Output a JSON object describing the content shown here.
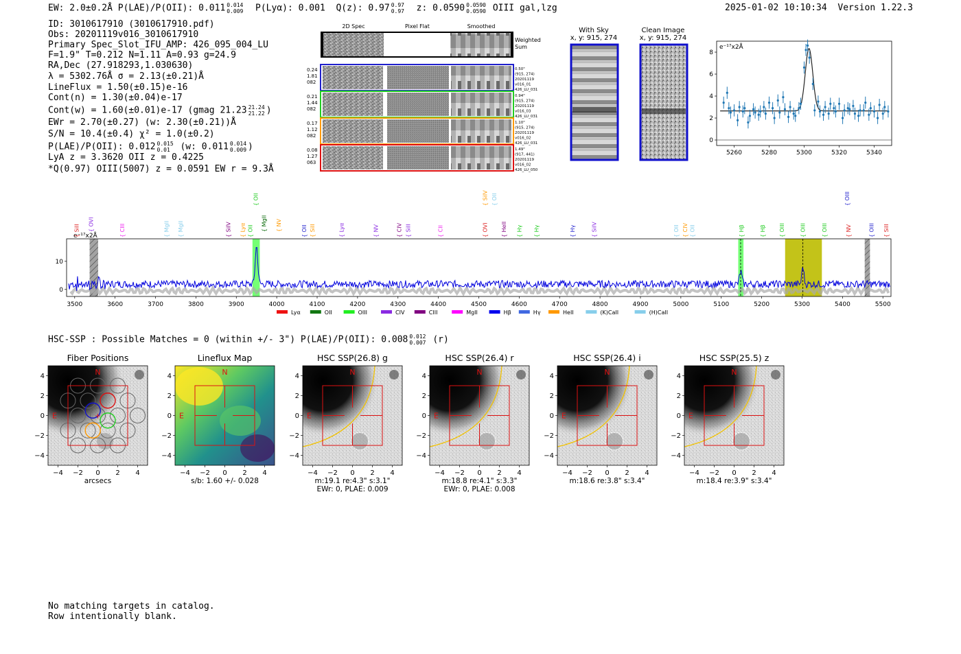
{
  "header": {
    "left": "EW: 2.0±0.2Å  P(LAE)/P(OII): 0.011",
    "lae_sup": "0.014",
    "lae_sub": "0.009",
    "plya": "P(Lyα): 0.001",
    "qz": "Q(z): 0.97",
    "qz_sup": "0.97",
    "qz_sub": "0.97",
    "z": "z: 0.0590",
    "z_sup": "0.0590",
    "z_sub": "0.0590",
    "tail": "OIII  gal,lzg",
    "timestamp": "2025-01-02 10:10:34",
    "version": "Version 1.22.3"
  },
  "info": {
    "id": "ID: 3010617910 (3010617910.pdf)",
    "obs": "Obs: 20201119v016_3010617910",
    "primary": "Primary Spec_Slot_IFU_AMP: 426_095_004_LU",
    "fwhm": "F=1.9\"  T=0.212  N=1.11  A=0.93  g=24.9",
    "radec": "RA,Dec (27.918293,1.030630)",
    "lambda": "λ = 5302.76Å  σ = 2.13(±0.21)Å",
    "lineflux": "LineFlux = 1.50(±0.15)e-16",
    "contn": "Cont(n) = 1.30(±0.04)e-17",
    "contw": "Cont(w) = 1.60(±0.01)e-17 (gmag 21.23",
    "contw_sup": "21.24",
    "contw_sub": "21.22",
    "contw_close": ")",
    "ewr": "EWr = 2.70(±0.27) (w: 2.30(±0.21))Å",
    "sn": "S/N = 10.4(±0.4)  χ² = 1.0(±0.2)",
    "plae": "P(LAE)/P(OII): 0.012",
    "plae_sup": "0.015",
    "plae_sub": "0.01",
    "plae_w": "(w: 0.011",
    "plae_w_sup": "0.014",
    "plae_w_sub": "0.009",
    "plae_w_close": ")",
    "lya": "LyA z = 3.3620  OII z = 0.4225",
    "q": "*Q(0.97) OIII(5007) z = 0.0591  EW r = 9.3Å"
  },
  "cutouts": {
    "col_2d": "2D Spec",
    "col_flat": "Pixel Flat",
    "col_smooth": "Smoothed",
    "weighted": "Weighted",
    "sum": "Sum",
    "rows": [
      {
        "left": [
          "0.24",
          "1.81",
          "082"
        ],
        "right": [
          "0.50\"",
          "(915, 274)",
          "20201119",
          "v016_01",
          "426_LU_031"
        ],
        "color": "#1f1fcc"
      },
      {
        "left": [
          "0.21",
          "1.44",
          "082"
        ],
        "right": [
          "0.94\"",
          "(915, 274)",
          "20201119",
          "v016_03",
          "426_LU_031"
        ],
        "color": "#22cc22"
      },
      {
        "left": [
          "0.17",
          "1.12",
          "082"
        ],
        "right": [
          "1.10\"",
          "(915, 274)",
          "20201119",
          "v016_02",
          "426_LU_031"
        ],
        "color": "#ff9900"
      },
      {
        "left": [
          "0.08",
          "1.27",
          "063"
        ],
        "right": [
          "1.49\"",
          "(917, 441)",
          "20201119",
          "v016_02",
          "426_LU_050"
        ],
        "color": "#dd1111"
      }
    ]
  },
  "sky": {
    "with_sky": "With Sky",
    "with_sky_xy": "x, y: 915, 274",
    "clean": "Clean Image",
    "clean_xy": "x, y: 915, 274"
  },
  "fit_chart": {
    "type": "scatter",
    "ylabel": "e⁻¹⁷x2Å",
    "x_ticks": [
      "5260",
      "5280",
      "5300",
      "5320",
      "5340"
    ],
    "y_ticks": [
      "0",
      "2",
      "4",
      "6",
      "8"
    ],
    "xlim": [
      5250,
      5350
    ],
    "ylim": [
      -0.5,
      9.0
    ],
    "points_x": [
      5254,
      5256,
      5257,
      5258,
      5260,
      5262,
      5263,
      5265,
      5266,
      5268,
      5269,
      5271,
      5272,
      5274,
      5275,
      5277,
      5278,
      5280,
      5282,
      5283,
      5285,
      5286,
      5288,
      5289,
      5291,
      5292,
      5294,
      5295,
      5297,
      5298,
      5300,
      5301,
      5302,
      5303,
      5305,
      5306,
      5308,
      5309,
      5311,
      5312,
      5314,
      5315,
      5317,
      5318,
      5320,
      5322,
      5323,
      5325,
      5326,
      5328,
      5329,
      5331,
      5332,
      5334,
      5335,
      5337,
      5338,
      5340,
      5342,
      5343,
      5345,
      5346,
      5348
    ],
    "points_y": [
      3.4,
      4.3,
      2.9,
      2.5,
      2.7,
      1.8,
      3.0,
      2.6,
      2.9,
      1.6,
      2.2,
      2.8,
      2.5,
      2.3,
      2.6,
      3.0,
      2.4,
      3.4,
      2.9,
      2.0,
      3.6,
      2.5,
      3.9,
      2.8,
      2.1,
      3.0,
      2.4,
      2.2,
      2.9,
      3.3,
      6.6,
      8.2,
      8.6,
      7.5,
      5.1,
      2.7,
      3.5,
      2.6,
      2.3,
      3.0,
      2.4,
      3.3,
      2.9,
      2.6,
      3.3,
      2.0,
      2.7,
      2.9,
      2.8,
      3.1,
      2.4,
      2.2,
      2.7,
      2.7,
      3.4,
      2.3,
      2.9,
      2.6,
      2.0,
      3.2,
      2.4,
      3.0,
      2.6
    ],
    "model": {
      "baseline": 2.65,
      "center": 5302.76,
      "sigma": 2.13,
      "amp": 5.7
    }
  },
  "spectrum_chart": {
    "type": "line",
    "ylabel": "e⁻¹⁷x2Å",
    "x_ticks": [
      "3500",
      "3600",
      "3700",
      "3800",
      "3900",
      "4000",
      "4100",
      "4200",
      "4300",
      "4400",
      "4500",
      "4600",
      "4700",
      "4800",
      "4900",
      "5000",
      "5100",
      "5200",
      "5300",
      "5400",
      "5500"
    ],
    "y_ticks": [
      "0",
      "10"
    ],
    "xlim": [
      3480,
      5520
    ],
    "ylim": [
      -2.5,
      18
    ],
    "lines": [
      {
        "label": "SiII",
        "w": 3505,
        "color": "#dd2222",
        "row": 1
      },
      {
        "label": "OVI",
        "w": 3540,
        "color": "#8a2be2",
        "row": 2
      },
      {
        "label": "CIII",
        "w": 3618,
        "color": "#ee22ee",
        "row": 1
      },
      {
        "label": "MgII",
        "w": 3727,
        "color": "#87ceeb",
        "row": 1
      },
      {
        "label": "MgII",
        "w": 3762,
        "color": "#87ceeb",
        "row": 1
      },
      {
        "label": "SiIV",
        "w": 3880,
        "color": "#800080",
        "row": 1
      },
      {
        "label": "Lyα",
        "w": 3916,
        "color": "#ff9900",
        "row": 1
      },
      {
        "label": "OII",
        "w": 3934,
        "color": "#22cc22",
        "row": 1
      },
      {
        "label": "OII",
        "w": 3948,
        "color": "#22cc22",
        "row": 3
      },
      {
        "label": "MgII",
        "w": 3968,
        "color": "#006400",
        "row": 2
      },
      {
        "label": "NV",
        "w": 4005,
        "color": "#ff9900",
        "row": 2
      },
      {
        "label": "OII",
        "w": 4068,
        "color": "#1f1fcc",
        "row": 1
      },
      {
        "label": "SiII",
        "w": 4088,
        "color": "#ff9900",
        "row": 1
      },
      {
        "label": "Lyα",
        "w": 4160,
        "color": "#8a2be2",
        "row": 1
      },
      {
        "label": "NV",
        "w": 4245,
        "color": "#8a2be2",
        "row": 1
      },
      {
        "label": "CIV",
        "w": 4303,
        "color": "#800080",
        "row": 1
      },
      {
        "label": "SiII",
        "w": 4325,
        "color": "#8a2be2",
        "row": 1
      },
      {
        "label": "CII",
        "w": 4405,
        "color": "#ee22ee",
        "row": 1
      },
      {
        "label": "SiIV",
        "w": 4515,
        "color": "#ff9900",
        "row": 3
      },
      {
        "label": "OII",
        "w": 4538,
        "color": "#87ceeb",
        "row": 3
      },
      {
        "label": "OVI",
        "w": 4515,
        "color": "#dd2222",
        "row": 1
      },
      {
        "label": "HeII",
        "w": 4562,
        "color": "#800080",
        "row": 1
      },
      {
        "label": "Hγ",
        "w": 4600,
        "color": "#22cc22",
        "row": 1
      },
      {
        "label": "Hγ",
        "w": 4643,
        "color": "#22cc22",
        "row": 1
      },
      {
        "label": "Hγ",
        "w": 4732,
        "color": "#1f1fcc",
        "row": 1
      },
      {
        "label": "SiIV",
        "w": 4785,
        "color": "#8a2be2",
        "row": 1
      },
      {
        "label": "OII",
        "w": 4988,
        "color": "#87ceeb",
        "row": 1
      },
      {
        "label": "CIV",
        "w": 5010,
        "color": "#ff9900",
        "row": 1
      },
      {
        "label": "OII",
        "w": 5028,
        "color": "#87ceeb",
        "row": 1
      },
      {
        "label": "Hβ",
        "w": 5150,
        "color": "#22cc22",
        "row": 1
      },
      {
        "label": "Hβ",
        "w": 5202,
        "color": "#22cc22",
        "row": 1
      },
      {
        "label": "OIII",
        "w": 5250,
        "color": "#22cc22",
        "row": 1
      },
      {
        "label": "OIII",
        "w": 5302,
        "color": "#22cc22",
        "row": 1
      },
      {
        "label": "OIII",
        "w": 5355,
        "color": "#22cc22",
        "row": 1
      },
      {
        "label": "NV",
        "w": 5415,
        "color": "#dd2222",
        "row": 1
      },
      {
        "label": "OIII",
        "w": 5411,
        "color": "#1f1fcc",
        "row": 3
      },
      {
        "label": "OIII",
        "w": 5472,
        "color": "#1f1fcc",
        "row": 1
      },
      {
        "label": "SiII",
        "w": 5508,
        "color": "#dd2222",
        "row": 1
      }
    ],
    "bands": [
      {
        "from": 3537,
        "to": 3558,
        "color": "#999999",
        "hatch": true
      },
      {
        "from": 3940,
        "to": 3958,
        "color": "#66ff66",
        "hatch": false
      },
      {
        "from": 5142,
        "to": 5155,
        "color": "#66ff66",
        "hatch": false
      },
      {
        "from": 5258,
        "to": 5349,
        "color": "#bdbd00",
        "hatch": false
      },
      {
        "from": 5455,
        "to": 5468,
        "color": "#999999",
        "hatch": true
      }
    ],
    "legend": [
      {
        "label": "Lyα",
        "color": "#ee1111"
      },
      {
        "label": "OII",
        "color": "#117711"
      },
      {
        "label": "OIII",
        "color": "#22ee22"
      },
      {
        "label": "CIV",
        "color": "#8a2be2"
      },
      {
        "label": "CIII",
        "color": "#800080"
      },
      {
        "label": "MgII",
        "color": "#ff00ff"
      },
      {
        "label": "Hβ",
        "color": "#0000ee"
      },
      {
        "label": "Hγ",
        "color": "#4169e1"
      },
      {
        "label": "HeII",
        "color": "#ff9900"
      },
      {
        "label": "(K)CaII",
        "color": "#87ceeb"
      },
      {
        "label": "(H)CaII",
        "color": "#87ceeb"
      }
    ]
  },
  "hsc": {
    "header": "HSC-SSP : Possible Matches = 0 (within +/- 3\")  P(LAE)/P(OII): 0.008",
    "header_sup": "0.012",
    "header_sub": "0.007",
    "header_tail": "(r)",
    "tick_x": [
      "−4",
      "−2",
      "0",
      "2",
      "4"
    ],
    "tick_y": [
      "4",
      "2",
      "0",
      "−2",
      "−4"
    ],
    "north": "N",
    "east": "E",
    "panels": [
      {
        "title": "Fiber Positions",
        "sub1": "arcsecs",
        "sub2": ""
      },
      {
        "title": "Lineflux Map",
        "sub1": "s/b: 1.60 +/- 0.028",
        "sub2": ""
      },
      {
        "title": "HSC SSP(26.8) g",
        "sub1": "m:19.1  re:4.3\"  s:3.1\"",
        "sub2": "EWr: 0, PLAE: 0.009"
      },
      {
        "title": "HSC SSP(26.4) r",
        "sub1": "m:18.8  re:4.1\"  s:3.3\"",
        "sub2": "EWr: 0, PLAE: 0.008"
      },
      {
        "title": "HSC SSP(26.4) i",
        "sub1": "m:18.6  re:3.8\"  s:3.4\"",
        "sub2": ""
      },
      {
        "title": "HSC SSP(25.5) z",
        "sub1": "m:18.4  re:3.9\"  s:3.4\"",
        "sub2": ""
      }
    ]
  },
  "footer": {
    "line1": "No matching targets in catalog.",
    "line2": "Row intentionally blank."
  }
}
